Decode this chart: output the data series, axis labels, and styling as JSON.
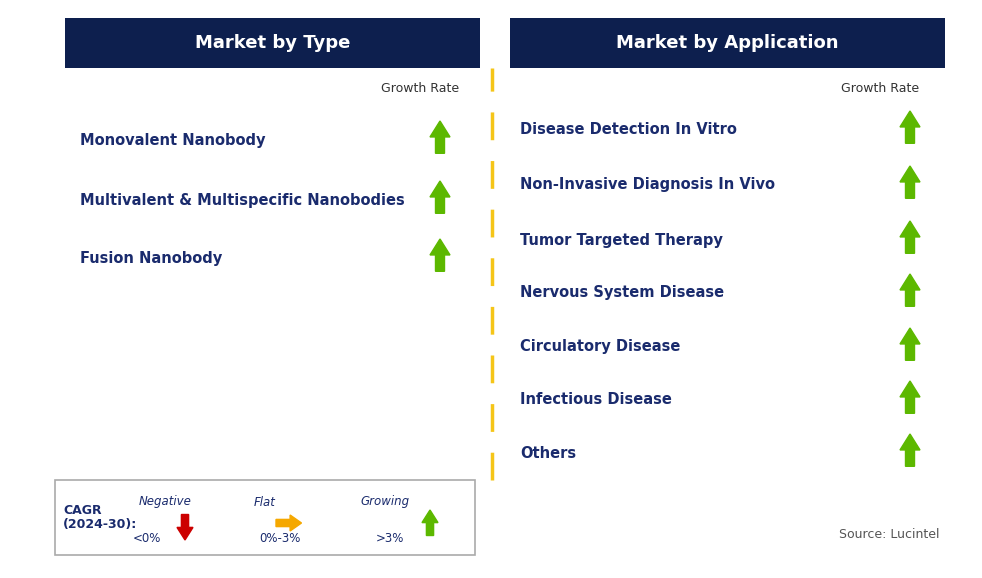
{
  "left_title": "Market by Type",
  "right_title": "Market by Application",
  "left_items": [
    "Monovalent Nanobody",
    "Multivalent & Multispecific Nanobodies",
    "Fusion Nanobody"
  ],
  "right_items": [
    "Disease Detection In Vitro",
    "Non-Invasive Diagnosis In Vivo",
    "Tumor Targeted Therapy",
    "Nervous System Disease",
    "Circulatory Disease",
    "Infectious Disease",
    "Others"
  ],
  "header_bg": "#0d1f4e",
  "header_text_color": "#ffffff",
  "item_text_color": "#1a2b6d",
  "growth_rate_label": "Growth Rate",
  "divider_color": "#f5c518",
  "arrow_green": "#5cb800",
  "arrow_red": "#cc0000",
  "arrow_yellow": "#f5a800",
  "legend_label_line1": "CAGR",
  "legend_label_line2": "(2024-30):",
  "legend_negative_label": "Negative",
  "legend_negative_sub": "<0%",
  "legend_flat_label": "Flat",
  "legend_flat_sub": "0%-3%",
  "legend_growing_label": "Growing",
  "legend_growing_sub": ">3%",
  "source_text": "Source: Lucintel",
  "bg_color": "#ffffff"
}
